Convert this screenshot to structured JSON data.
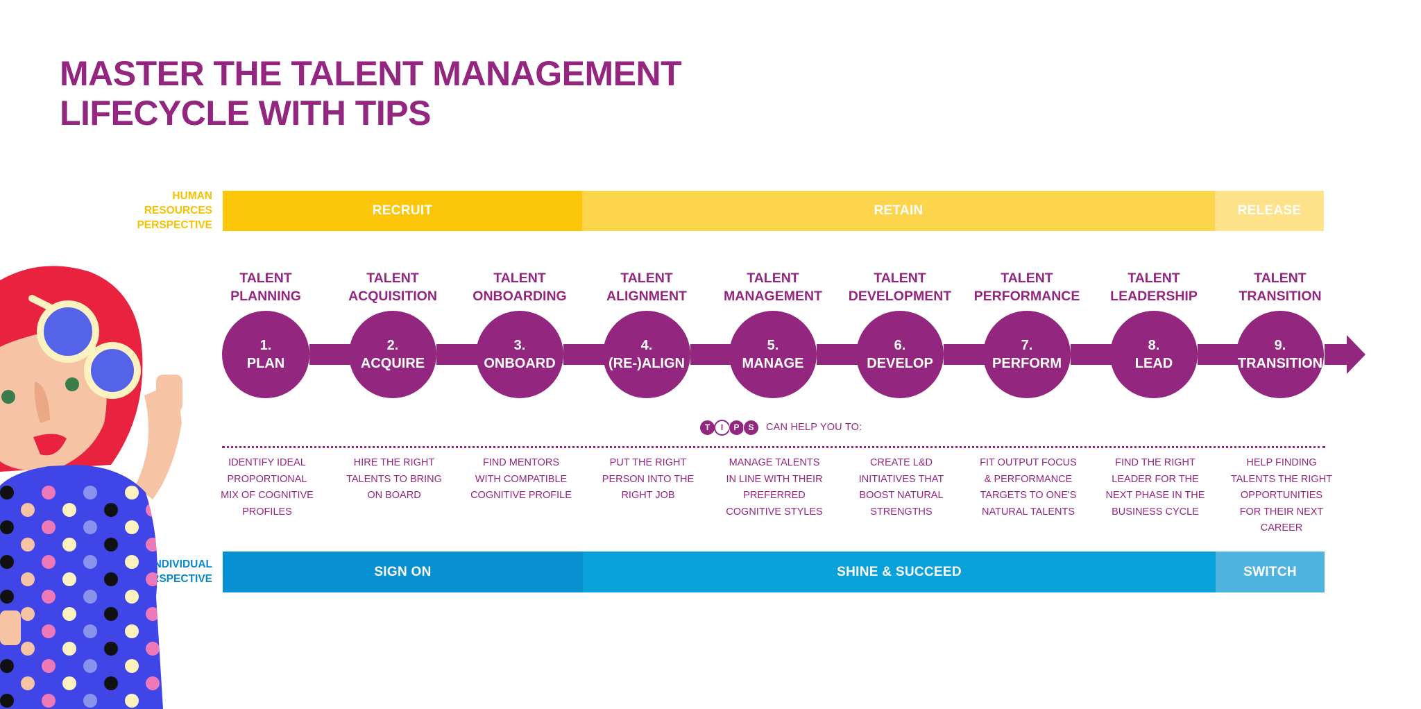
{
  "title": {
    "line1": "MASTER THE TALENT MANAGEMENT",
    "line2": "LIFECYCLE WITH TIPS"
  },
  "hr_perspective": {
    "label_lines": [
      "HUMAN",
      "RESOURCES",
      "PERSPECTIVE"
    ],
    "phases": [
      {
        "label": "RECRUIT",
        "color": "#fcc60a"
      },
      {
        "label": "RETAIN",
        "color": "#fdd54d"
      },
      {
        "label": "RELEASE",
        "color": "#fde28a"
      }
    ]
  },
  "stages": [
    {
      "name_line1": "TALENT",
      "name_line2": "PLANNING",
      "number": "1.",
      "action": "PLAN",
      "tip_lines": [
        "IDENTIFY IDEAL",
        "PROPORTIONAL",
        "MIX OF COGNITIVE",
        "PROFILES"
      ]
    },
    {
      "name_line1": "TALENT",
      "name_line2": "ACQUISITION",
      "number": "2.",
      "action": "ACQUIRE",
      "tip_lines": [
        "HIRE THE RIGHT",
        "TALENTS TO BRING",
        "ON BOARD"
      ]
    },
    {
      "name_line1": "TALENT",
      "name_line2": "ONBOARDING",
      "number": "3.",
      "action": "ONBOARD",
      "tip_lines": [
        "FIND MENTORS",
        "WITH COMPATIBLE",
        "COGNITIVE PROFILE"
      ]
    },
    {
      "name_line1": "TALENT",
      "name_line2": "ALIGNMENT",
      "number": "4.",
      "action": "(RE-)ALIGN",
      "tip_lines": [
        "PUT THE RIGHT",
        "PERSON INTO THE",
        "RIGHT JOB"
      ]
    },
    {
      "name_line1": "TALENT",
      "name_line2": "MANAGEMENT",
      "number": "5.",
      "action": "MANAGE",
      "tip_lines": [
        "MANAGE TALENTS",
        "IN LINE WITH THEIR",
        "PREFERRED",
        "COGNITIVE STYLES"
      ]
    },
    {
      "name_line1": "TALENT",
      "name_line2": "DEVELOPMENT",
      "number": "6.",
      "action": "DEVELOP",
      "tip_lines": [
        "CREATE L&D",
        "INITIATIVES THAT",
        "BOOST NATURAL",
        "STRENGTHS"
      ]
    },
    {
      "name_line1": "TALENT",
      "name_line2": "PERFORMANCE",
      "number": "7.",
      "action": "PERFORM",
      "tip_lines": [
        "FIT OUTPUT FOCUS",
        "& PERFORMANCE",
        "TARGETS TO ONE'S",
        "NATURAL TALENTS"
      ]
    },
    {
      "name_line1": "TALENT",
      "name_line2": "LEADERSHIP",
      "number": "8.",
      "action": "LEAD",
      "tip_lines": [
        "FIND THE RIGHT",
        "LEADER FOR THE",
        "NEXT PHASE IN THE",
        "BUSINESS CYCLE"
      ]
    },
    {
      "name_line1": "TALENT",
      "name_line2": "TRANSITION",
      "number": "9.",
      "action": "TRANSITION",
      "tip_lines": [
        "HELP FINDING",
        "TALENTS THE RIGHT",
        "OPPORTUNITIES",
        "FOR THEIR NEXT",
        "CAREER"
      ]
    }
  ],
  "tips": {
    "logo_letters": [
      "T",
      "I",
      "P",
      "S"
    ],
    "caption": "CAN HELP YOU TO:"
  },
  "individual_perspective": {
    "label_lines": [
      "INDIVIDUAL",
      "PERSPECTIVE"
    ],
    "phases": [
      {
        "label": "SIGN ON",
        "color": "#0891d2"
      },
      {
        "label": "SHINE & SUCCEED",
        "color": "#09a1d9"
      },
      {
        "label": "SWITCH",
        "color": "#4fb3e0"
      }
    ]
  },
  "colors": {
    "brand_purple": "#93267f",
    "hr_label": "#f6c200",
    "individual_label": "#0a88c8"
  }
}
